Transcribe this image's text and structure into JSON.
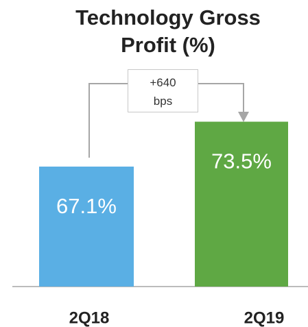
{
  "chart_data": {
    "type": "bar",
    "title": "Technology Gross Profit (%)",
    "categories": [
      "2Q18",
      "2Q19"
    ],
    "values": [
      67.1,
      73.5
    ],
    "value_labels": [
      "67.1%",
      "73.5%"
    ],
    "colors": [
      "#5aafe4",
      "#5fa844"
    ],
    "ylim": [
      50,
      80
    ],
    "annotation": "+640 bps"
  }
}
